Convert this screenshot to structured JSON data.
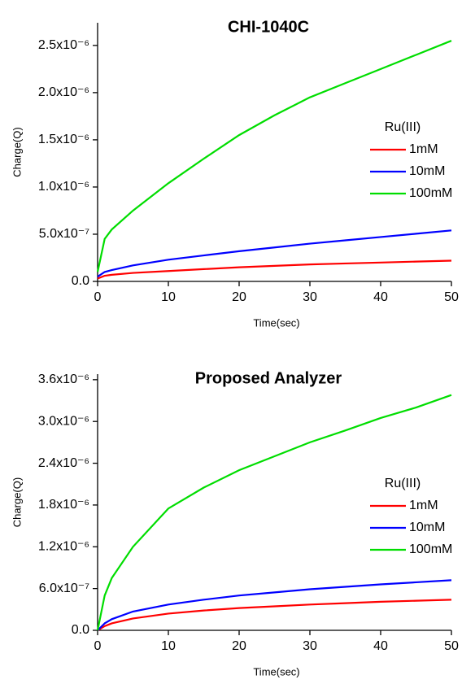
{
  "chart_data": [
    {
      "type": "line",
      "title": "CHI-1040C",
      "x_label": "Time(sec)",
      "y_label": "Charge(Q)",
      "legend_title": "Ru(III)",
      "legend": "right",
      "x": [
        0,
        1,
        2,
        5,
        10,
        15,
        20,
        25,
        30,
        35,
        40,
        45,
        50
      ],
      "series": [
        {
          "name": "1mM",
          "color": "#ff0000",
          "values": [
            3e-08,
            6e-08,
            7e-08,
            9e-08,
            1.1e-07,
            1.3e-07,
            1.5e-07,
            1.65e-07,
            1.8e-07,
            1.9e-07,
            2e-07,
            2.1e-07,
            2.2e-07
          ]
        },
        {
          "name": "10mM",
          "color": "#0000ff",
          "values": [
            5e-08,
            1e-07,
            1.2e-07,
            1.7e-07,
            2.3e-07,
            2.75e-07,
            3.2e-07,
            3.6e-07,
            4e-07,
            4.35e-07,
            4.7e-07,
            5.05e-07,
            5.4e-07
          ]
        },
        {
          "name": "100mM",
          "color": "#00dd00",
          "values": [
            1e-07,
            4.5e-07,
            5.5e-07,
            7.5e-07,
            1.04e-06,
            1.3e-06,
            1.55e-06,
            1.76e-06,
            1.95e-06,
            2.1e-06,
            2.25e-06,
            2.4e-06,
            2.55e-06
          ]
        }
      ],
      "xlim": [
        0,
        50
      ],
      "xticks": [
        0,
        10,
        20,
        30,
        40,
        50
      ],
      "ylim": [
        0,
        2.74e-06
      ],
      "yticks": [
        {
          "value": 0,
          "label": "0.0"
        },
        {
          "value": 5e-07,
          "label": "5.0x10⁻⁷"
        },
        {
          "value": 1e-06,
          "label": "1.0x10⁻⁶"
        },
        {
          "value": 1.5e-06,
          "label": "1.5x10⁻⁶"
        },
        {
          "value": 2e-06,
          "label": "2.0x10⁻⁶"
        },
        {
          "value": 2.5e-06,
          "label": "2.5x10⁻⁶"
        }
      ]
    },
    {
      "type": "line",
      "title": "Proposed Analyzer",
      "x_label": "Time(sec)",
      "y_label": "Charge(Q)",
      "legend_title": "Ru(III)",
      "legend": "right",
      "x": [
        0,
        1,
        2,
        5,
        10,
        15,
        20,
        25,
        30,
        35,
        40,
        45,
        50
      ],
      "series": [
        {
          "name": "1mM",
          "color": "#ff0000",
          "values": [
            0,
            6e-08,
            1e-07,
            1.7e-07,
            2.4e-07,
            2.85e-07,
            3.2e-07,
            3.45e-07,
            3.7e-07,
            3.9e-07,
            4.1e-07,
            4.25e-07,
            4.4e-07
          ]
        },
        {
          "name": "10mM",
          "color": "#0000ff",
          "values": [
            0,
            1e-07,
            1.6e-07,
            2.7e-07,
            3.7e-07,
            4.4e-07,
            5e-07,
            5.45e-07,
            5.9e-07,
            6.25e-07,
            6.6e-07,
            6.9e-07,
            7.2e-07
          ]
        },
        {
          "name": "100mM",
          "color": "#00dd00",
          "values": [
            0,
            5e-07,
            7.5e-07,
            1.2e-06,
            1.75e-06,
            2.05e-06,
            2.3e-06,
            2.5e-06,
            2.7e-06,
            2.87e-06,
            3.05e-06,
            3.2e-06,
            3.38e-06
          ]
        }
      ],
      "xlim": [
        0,
        50
      ],
      "xticks": [
        0,
        10,
        20,
        30,
        40,
        50
      ],
      "ylim": [
        0,
        3.68e-06
      ],
      "yticks": [
        {
          "value": 0,
          "label": "0.0"
        },
        {
          "value": 6e-07,
          "label": "6.0x10⁻⁷"
        },
        {
          "value": 1.2e-06,
          "label": "1.2x10⁻⁶"
        },
        {
          "value": 1.8e-06,
          "label": "1.8x10⁻⁶"
        },
        {
          "value": 2.4e-06,
          "label": "2.4x10⁻⁶"
        },
        {
          "value": 3e-06,
          "label": "3.0x10⁻⁶"
        },
        {
          "value": 3.6e-06,
          "label": "3.6x10⁻⁶"
        }
      ]
    }
  ]
}
